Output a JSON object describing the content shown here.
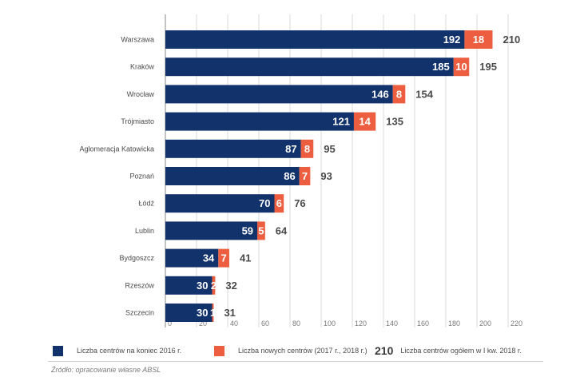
{
  "chart_data": {
    "type": "bar",
    "orientation": "horizontal",
    "stacked": true,
    "categories": [
      "Warszawa",
      "Kraków",
      "Wrocław",
      "Trójmiasto",
      "Aglomeracja Katowicka",
      "Poznań",
      "Łódź",
      "Lublin",
      "Bydgoszcz",
      "Rzeszów",
      "Szczecin"
    ],
    "series": [
      {
        "name": "Liczba centrów na koniec 2016 r.",
        "color": "#12326b",
        "values": [
          192,
          185,
          146,
          121,
          87,
          86,
          70,
          59,
          34,
          30,
          30
        ]
      },
      {
        "name": "Liczba nowych centrów (2017 r., 2018 r.)",
        "color": "#ec5e3f",
        "values": [
          18,
          10,
          8,
          14,
          8,
          7,
          6,
          5,
          7,
          2,
          1
        ]
      }
    ],
    "totals": [
      210,
      195,
      154,
      135,
      95,
      93,
      76,
      64,
      41,
      32,
      31
    ],
    "xticks": [
      0,
      20,
      40,
      60,
      80,
      100,
      120,
      140,
      160,
      180,
      200,
      220
    ],
    "xlim": [
      0,
      220
    ],
    "grid": true
  },
  "legend": {
    "items": [
      {
        "label": "Liczba centrów na koniec 2016 r.",
        "color": "#12326b"
      },
      {
        "label": "Liczba nowych centrów (2017 r., 2018 r.)",
        "color": "#ec5e3f"
      }
    ],
    "total_sample": "210",
    "total_label": "Liczba centrów ogółem w I kw. 2018 r."
  },
  "source": "Źródło: opracowanie własne ABSL"
}
